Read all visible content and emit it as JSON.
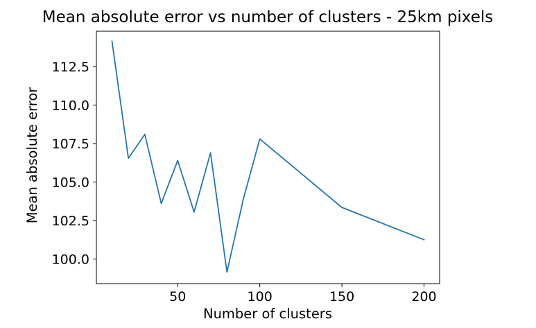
{
  "chart_data": {
    "type": "line",
    "title": "Mean absolute error vs number of clusters - 25km pixels",
    "xlabel": "Number of clusters",
    "ylabel": "Mean absolute error",
    "xlim": [
      0.5,
      209.5
    ],
    "ylim": [
      98.4,
      114.8
    ],
    "xticks": [
      50,
      100,
      150,
      200
    ],
    "xtick_labels": [
      "50",
      "100",
      "150",
      "200"
    ],
    "yticks": [
      100.0,
      102.5,
      105.0,
      107.5,
      110.0,
      112.5
    ],
    "ytick_labels": [
      "100.0",
      "102.5",
      "105.0",
      "107.5",
      "110.0",
      "112.5"
    ],
    "grid": false,
    "series": [
      {
        "color": "#1f77b4",
        "x": [
          10,
          20,
          30,
          40,
          50,
          60,
          70,
          80,
          90,
          100,
          150,
          200
        ],
        "y": [
          114.15,
          106.55,
          108.1,
          103.6,
          106.4,
          103.05,
          106.9,
          99.15,
          103.9,
          107.8,
          103.35,
          101.25
        ]
      }
    ]
  }
}
